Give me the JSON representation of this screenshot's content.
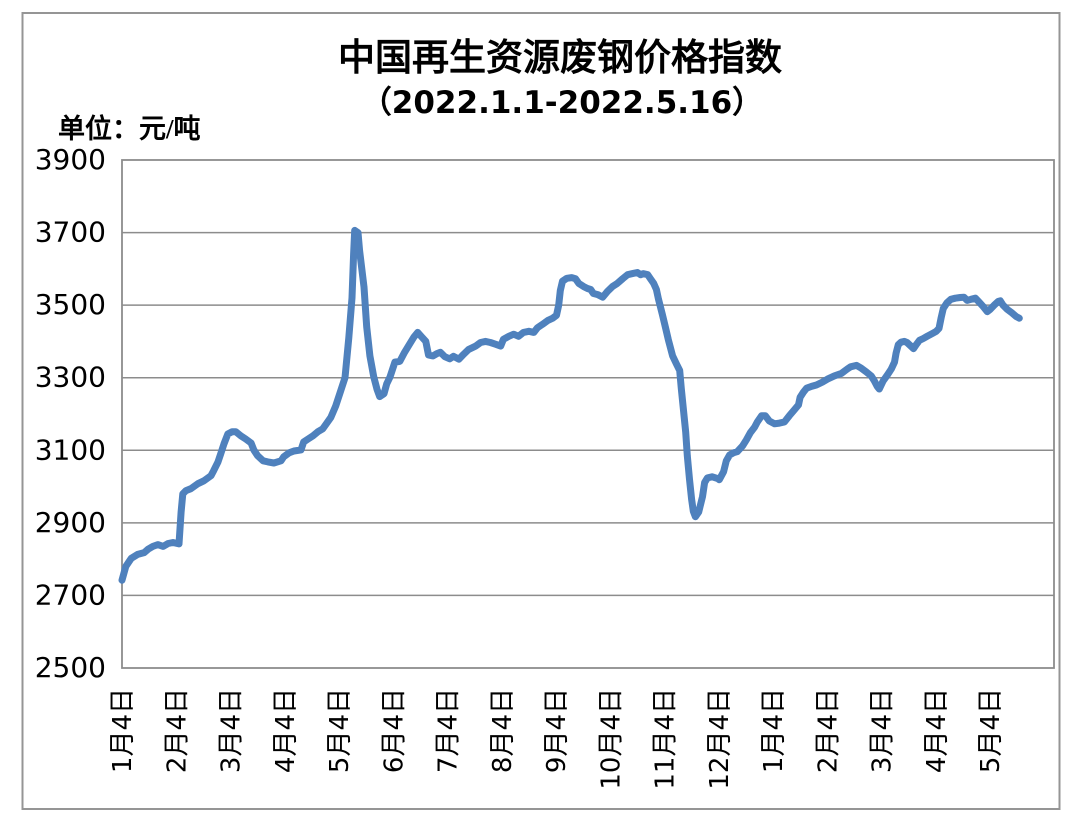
{
  "chart": {
    "title": "中国再生资源废钢价格指数",
    "subtitle": "（2022.1.1-2022.5.16）",
    "unit_label": "单位：元/吨"
  },
  "colors": {
    "line": "#4F81BD",
    "grid": "#8C8C8C",
    "frame": "#959595",
    "text": "#000000",
    "background": "#FFFFFF"
  },
  "chart_data": {
    "type": "line",
    "title": "中国再生资源废钢价格指数",
    "subtitle": "（2022.1.1-2022.5.16）",
    "unit": "元/吨",
    "ylim": [
      2500,
      3900
    ],
    "ytick_step": 200,
    "ytick_labels": [
      "3900",
      "3700",
      "3500",
      "3300",
      "3100",
      "2900",
      "2700",
      "2500"
    ],
    "xtick_labels": [
      "1月4日",
      "2月4日",
      "3月4日",
      "4月4日",
      "5月4日",
      "6月4日",
      "7月4日",
      "8月4日",
      "9月4日",
      "10月4日",
      "11月4日",
      "12月4日",
      "1月4日",
      "2月4日",
      "3月4日",
      "4月4日",
      "5月4日"
    ],
    "grid": "horizontal",
    "legend": "none",
    "series": [
      {
        "x_unit": "month_index_from_first_tick",
        "points": [
          [
            0.0,
            2742
          ],
          [
            0.07,
            2780
          ],
          [
            0.17,
            2802
          ],
          [
            0.29,
            2813
          ],
          [
            0.41,
            2818
          ],
          [
            0.48,
            2827
          ],
          [
            0.57,
            2835
          ],
          [
            0.66,
            2840
          ],
          [
            0.76,
            2835
          ],
          [
            0.85,
            2843
          ],
          [
            0.94,
            2846
          ],
          [
            1.05,
            2842
          ],
          [
            1.09,
            2930
          ],
          [
            1.12,
            2980
          ],
          [
            1.18,
            2989
          ],
          [
            1.27,
            2994
          ],
          [
            1.4,
            3008
          ],
          [
            1.51,
            3016
          ],
          [
            1.64,
            3030
          ],
          [
            1.69,
            3044
          ],
          [
            1.77,
            3068
          ],
          [
            1.82,
            3090
          ],
          [
            1.88,
            3118
          ],
          [
            1.95,
            3145
          ],
          [
            2.03,
            3151
          ],
          [
            2.1,
            3151
          ],
          [
            2.19,
            3140
          ],
          [
            2.28,
            3131
          ],
          [
            2.38,
            3120
          ],
          [
            2.43,
            3101
          ],
          [
            2.5,
            3085
          ],
          [
            2.6,
            3071
          ],
          [
            2.69,
            3068
          ],
          [
            2.8,
            3065
          ],
          [
            2.93,
            3071
          ],
          [
            2.98,
            3082
          ],
          [
            3.08,
            3093
          ],
          [
            3.17,
            3098
          ],
          [
            3.3,
            3101
          ],
          [
            3.35,
            3123
          ],
          [
            3.43,
            3131
          ],
          [
            3.52,
            3140
          ],
          [
            3.61,
            3151
          ],
          [
            3.7,
            3159
          ],
          [
            3.76,
            3172
          ],
          [
            3.85,
            3191
          ],
          [
            3.94,
            3222
          ],
          [
            4.03,
            3263
          ],
          [
            4.11,
            3300
          ],
          [
            4.18,
            3410
          ],
          [
            4.24,
            3520
          ],
          [
            4.27,
            3640
          ],
          [
            4.29,
            3706
          ],
          [
            4.35,
            3700
          ],
          [
            4.38,
            3650
          ],
          [
            4.46,
            3550
          ],
          [
            4.51,
            3440
          ],
          [
            4.57,
            3360
          ],
          [
            4.64,
            3303
          ],
          [
            4.7,
            3268
          ],
          [
            4.75,
            3248
          ],
          [
            4.83,
            3256
          ],
          [
            4.88,
            3283
          ],
          [
            4.94,
            3302
          ],
          [
            5.03,
            3343
          ],
          [
            5.12,
            3345
          ],
          [
            5.21,
            3370
          ],
          [
            5.29,
            3390
          ],
          [
            5.38,
            3412
          ],
          [
            5.45,
            3425
          ],
          [
            5.52,
            3413
          ],
          [
            5.6,
            3400
          ],
          [
            5.65,
            3363
          ],
          [
            5.73,
            3360
          ],
          [
            5.8,
            3366
          ],
          [
            5.87,
            3370
          ],
          [
            5.95,
            3358
          ],
          [
            6.04,
            3352
          ],
          [
            6.11,
            3359
          ],
          [
            6.21,
            3351
          ],
          [
            6.3,
            3365
          ],
          [
            6.39,
            3378
          ],
          [
            6.52,
            3387
          ],
          [
            6.61,
            3397
          ],
          [
            6.7,
            3400
          ],
          [
            6.79,
            3397
          ],
          [
            6.89,
            3392
          ],
          [
            6.98,
            3387
          ],
          [
            7.03,
            3406
          ],
          [
            7.13,
            3414
          ],
          [
            7.22,
            3420
          ],
          [
            7.31,
            3414
          ],
          [
            7.4,
            3425
          ],
          [
            7.5,
            3428
          ],
          [
            7.59,
            3425
          ],
          [
            7.66,
            3438
          ],
          [
            7.75,
            3447
          ],
          [
            7.85,
            3458
          ],
          [
            7.94,
            3464
          ],
          [
            8.01,
            3472
          ],
          [
            8.05,
            3500
          ],
          [
            8.08,
            3540
          ],
          [
            8.12,
            3566
          ],
          [
            8.2,
            3574
          ],
          [
            8.29,
            3576
          ],
          [
            8.36,
            3573
          ],
          [
            8.42,
            3560
          ],
          [
            8.51,
            3551
          ],
          [
            8.58,
            3546
          ],
          [
            8.64,
            3543
          ],
          [
            8.69,
            3532
          ],
          [
            8.77,
            3529
          ],
          [
            8.86,
            3522
          ],
          [
            8.95,
            3538
          ],
          [
            9.04,
            3551
          ],
          [
            9.13,
            3560
          ],
          [
            9.23,
            3573
          ],
          [
            9.32,
            3584
          ],
          [
            9.41,
            3587
          ],
          [
            9.5,
            3590
          ],
          [
            9.56,
            3584
          ],
          [
            9.61,
            3587
          ],
          [
            9.69,
            3584
          ],
          [
            9.74,
            3573
          ],
          [
            9.8,
            3560
          ],
          [
            9.85,
            3543
          ],
          [
            9.89,
            3516
          ],
          [
            9.96,
            3475
          ],
          [
            10.02,
            3437
          ],
          [
            10.07,
            3405
          ],
          [
            10.15,
            3360
          ],
          [
            10.22,
            3338
          ],
          [
            10.28,
            3320
          ],
          [
            10.31,
            3270
          ],
          [
            10.35,
            3210
          ],
          [
            10.39,
            3150
          ],
          [
            10.42,
            3085
          ],
          [
            10.46,
            3020
          ],
          [
            10.5,
            2965
          ],
          [
            10.53,
            2932
          ],
          [
            10.57,
            2917
          ],
          [
            10.63,
            2930
          ],
          [
            10.7,
            2972
          ],
          [
            10.74,
            3011
          ],
          [
            10.79,
            3024
          ],
          [
            10.88,
            3027
          ],
          [
            10.98,
            3022
          ],
          [
            11.01,
            3019
          ],
          [
            11.09,
            3041
          ],
          [
            11.14,
            3071
          ],
          [
            11.2,
            3087
          ],
          [
            11.27,
            3093
          ],
          [
            11.34,
            3096
          ],
          [
            11.44,
            3112
          ],
          [
            11.51,
            3129
          ],
          [
            11.58,
            3148
          ],
          [
            11.66,
            3164
          ],
          [
            11.71,
            3178
          ],
          [
            11.79,
            3195
          ],
          [
            11.86,
            3195
          ],
          [
            11.93,
            3181
          ],
          [
            12.03,
            3173
          ],
          [
            12.12,
            3175
          ],
          [
            12.21,
            3178
          ],
          [
            12.3,
            3195
          ],
          [
            12.39,
            3211
          ],
          [
            12.47,
            3225
          ],
          [
            12.5,
            3246
          ],
          [
            12.56,
            3260
          ],
          [
            12.62,
            3271
          ],
          [
            12.71,
            3276
          ],
          [
            12.8,
            3280
          ],
          [
            12.91,
            3288
          ],
          [
            13.0,
            3296
          ],
          [
            13.13,
            3305
          ],
          [
            13.26,
            3312
          ],
          [
            13.37,
            3324
          ],
          [
            13.43,
            3330
          ],
          [
            13.54,
            3334
          ],
          [
            13.63,
            3326
          ],
          [
            13.72,
            3316
          ],
          [
            13.81,
            3305
          ],
          [
            13.87,
            3291
          ],
          [
            13.92,
            3276
          ],
          [
            13.96,
            3269
          ],
          [
            14.03,
            3291
          ],
          [
            14.11,
            3308
          ],
          [
            14.18,
            3324
          ],
          [
            14.24,
            3343
          ],
          [
            14.27,
            3368
          ],
          [
            14.31,
            3391
          ],
          [
            14.36,
            3398
          ],
          [
            14.42,
            3400
          ],
          [
            14.47,
            3397
          ],
          [
            14.55,
            3386
          ],
          [
            14.59,
            3380
          ],
          [
            14.64,
            3391
          ],
          [
            14.7,
            3403
          ],
          [
            14.77,
            3408
          ],
          [
            14.84,
            3414
          ],
          [
            14.94,
            3422
          ],
          [
            15.01,
            3428
          ],
          [
            15.06,
            3436
          ],
          [
            15.1,
            3466
          ],
          [
            15.14,
            3491
          ],
          [
            15.21,
            3507
          ],
          [
            15.28,
            3516
          ],
          [
            15.36,
            3519
          ],
          [
            15.45,
            3521
          ],
          [
            15.52,
            3522
          ],
          [
            15.58,
            3513
          ],
          [
            15.65,
            3516
          ],
          [
            15.73,
            3519
          ],
          [
            15.8,
            3508
          ],
          [
            15.87,
            3497
          ],
          [
            15.95,
            3482
          ],
          [
            16.0,
            3488
          ],
          [
            16.08,
            3500
          ],
          [
            16.15,
            3510
          ],
          [
            16.19,
            3512
          ],
          [
            16.24,
            3500
          ],
          [
            16.32,
            3488
          ],
          [
            16.41,
            3478
          ],
          [
            16.48,
            3469
          ],
          [
            16.54,
            3464
          ]
        ]
      }
    ]
  }
}
